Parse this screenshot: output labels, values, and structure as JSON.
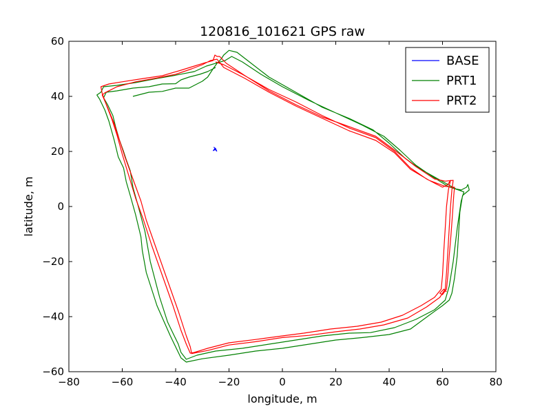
{
  "chart_data": {
    "type": "line",
    "title": "120816_101621 GPS raw",
    "xlabel": "longitude, m",
    "ylabel": "latitude, m",
    "xlim": [
      -80,
      80
    ],
    "ylim": [
      -60,
      60
    ],
    "xticks": [
      -80,
      -60,
      -40,
      -20,
      0,
      20,
      40,
      60,
      80
    ],
    "yticks": [
      -60,
      -40,
      -20,
      0,
      20,
      40,
      60
    ],
    "xtick_labels": [
      "−80",
      "−60",
      "−40",
      "−20",
      "0",
      "20",
      "40",
      "60",
      "80"
    ],
    "ytick_labels": [
      "−60",
      "−40",
      "−20",
      "0",
      "20",
      "40",
      "60"
    ],
    "grid": false,
    "legend_position": "top-right",
    "series": [
      {
        "name": "BASE",
        "color": "#0000ff",
        "paths": [
          [
            [
              -25.7,
              21.6
            ],
            [
              -25.0,
              20.8
            ],
            [
              -25.9,
              20.3
            ],
            [
              -25.1,
              21.2
            ],
            [
              -24.6,
              20.1
            ],
            [
              -25.5,
              21.0
            ]
          ]
        ]
      },
      {
        "name": "PRT1",
        "color": "#008000",
        "paths": [
          [
            [
              -56,
              40
            ],
            [
              -50,
              41.5
            ],
            [
              -45,
              41.8
            ],
            [
              -40,
              43
            ],
            [
              -35,
              43
            ],
            [
              -32,
              44.5
            ],
            [
              -30,
              45.5
            ],
            [
              -28,
              47
            ],
            [
              -26,
              50
            ],
            [
              -24.5,
              52
            ],
            [
              -23,
              53.5
            ],
            [
              -22,
              55
            ],
            [
              -20,
              56.7
            ],
            [
              -17,
              56
            ],
            [
              -13,
              53
            ],
            [
              -5,
              47
            ],
            [
              5,
              41.5
            ],
            [
              15,
              36
            ],
            [
              25,
              32
            ],
            [
              34,
              27.8
            ],
            [
              40,
              23
            ],
            [
              46,
              17.5
            ],
            [
              51,
              14
            ],
            [
              57,
              10.7
            ],
            [
              62,
              8
            ],
            [
              65,
              6.4
            ],
            [
              67,
              6
            ],
            [
              69,
              7
            ],
            [
              69.5,
              8
            ],
            [
              70,
              6
            ],
            [
              67.5,
              4
            ],
            [
              66.5,
              -2
            ],
            [
              66,
              -10
            ],
            [
              65.5,
              -18
            ],
            [
              64.5,
              -26
            ],
            [
              63.5,
              -31.5
            ],
            [
              62.5,
              -34
            ],
            [
              60,
              -36
            ],
            [
              55,
              -39.5
            ],
            [
              48,
              -44.5
            ],
            [
              40,
              -46.5
            ],
            [
              30,
              -47.6
            ],
            [
              20,
              -48.5
            ],
            [
              10,
              -50
            ],
            [
              0,
              -51.5
            ],
            [
              -10,
              -52.5
            ],
            [
              -20,
              -54
            ],
            [
              -30,
              -55.3
            ],
            [
              -36,
              -56.5
            ],
            [
              -38,
              -55
            ],
            [
              -40.5,
              -50
            ],
            [
              -42,
              -47
            ],
            [
              -47,
              -36
            ],
            [
              -51,
              -24
            ],
            [
              -52.5,
              -16
            ],
            [
              -53,
              -11
            ],
            [
              -55,
              -3
            ],
            [
              -57,
              4
            ],
            [
              -58.5,
              9
            ],
            [
              -59.5,
              14
            ],
            [
              -61.5,
              18
            ],
            [
              -63,
              24
            ],
            [
              -65,
              31
            ],
            [
              -66.5,
              35
            ],
            [
              -68.5,
              39
            ],
            [
              -69.5,
              40.5
            ],
            [
              -68,
              41.5
            ],
            [
              -67,
              43.5
            ],
            [
              -62,
              44
            ],
            [
              -55,
              45
            ],
            [
              -47,
              46.5
            ],
            [
              -41,
              47.5
            ],
            [
              -33,
              49
            ],
            [
              -28.5,
              51
            ],
            [
              -24,
              52.3
            ],
            [
              -21.5,
              53
            ],
            [
              -19,
              54.5
            ],
            [
              -15,
              52.5
            ],
            [
              -8,
              48
            ],
            [
              0,
              43.5
            ],
            [
              10,
              38.5
            ],
            [
              20,
              34
            ],
            [
              30,
              29.5
            ],
            [
              38,
              25.5
            ],
            [
              44,
              20.5
            ],
            [
              50,
              15
            ],
            [
              56,
              11
            ],
            [
              62,
              7.3
            ],
            [
              66,
              6
            ],
            [
              68,
              5.3
            ],
            [
              67,
              2
            ],
            [
              65.5,
              -8
            ],
            [
              64,
              -20
            ],
            [
              62.5,
              -29
            ],
            [
              61,
              -34
            ],
            [
              57,
              -37.5
            ],
            [
              50,
              -41
            ],
            [
              42,
              -44
            ],
            [
              33,
              -45.8
            ],
            [
              25,
              -46
            ],
            [
              15,
              -47
            ],
            [
              5,
              -48.5
            ],
            [
              -5,
              -50
            ],
            [
              -15,
              -51.5
            ],
            [
              -25,
              -52.5
            ],
            [
              -32,
              -54
            ],
            [
              -36,
              -55.5
            ],
            [
              -38,
              -53
            ],
            [
              -39,
              -50
            ],
            [
              -43,
              -42
            ],
            [
              -46,
              -33
            ],
            [
              -49.5,
              -20
            ],
            [
              -51.5,
              -9
            ],
            [
              -54,
              0
            ],
            [
              -56,
              7
            ],
            [
              -57,
              13
            ],
            [
              -58.5,
              17
            ],
            [
              -59.5,
              20
            ],
            [
              -61,
              24
            ],
            [
              -62.5,
              29
            ],
            [
              -63.5,
              33
            ],
            [
              -65.5,
              37
            ],
            [
              -67,
              39.5
            ],
            [
              -66,
              41.5
            ],
            [
              -62,
              42
            ],
            [
              -56,
              43
            ],
            [
              -50,
              43.5
            ],
            [
              -45,
              44.5
            ],
            [
              -40,
              44.6
            ],
            [
              -38,
              46
            ],
            [
              -35,
              47
            ],
            [
              -31,
              48
            ],
            [
              -28,
              49
            ],
            [
              -25,
              50.5
            ]
          ]
        ]
      },
      {
        "name": "PRT2",
        "color": "#ff0000",
        "paths": [
          [
            [
              -25,
              52.5
            ],
            [
              -22,
              51.5
            ],
            [
              -15,
              48
            ],
            [
              -5,
              42.5
            ],
            [
              5,
              38
            ],
            [
              15,
              33
            ],
            [
              25,
              28.5
            ],
            [
              35,
              25
            ],
            [
              42,
              20
            ],
            [
              48,
              14
            ],
            [
              54,
              10
            ],
            [
              60,
              7
            ],
            [
              62,
              8
            ],
            [
              63,
              9.5
            ],
            [
              62.2,
              6
            ],
            [
              61.5,
              0
            ],
            [
              61,
              -8
            ],
            [
              60.5,
              -16
            ],
            [
              60,
              -25
            ],
            [
              59.5,
              -30
            ],
            [
              57,
              -33
            ],
            [
              52,
              -36
            ],
            [
              45,
              -39.5
            ],
            [
              37,
              -42
            ],
            [
              28,
              -43.5
            ],
            [
              18,
              -44.5
            ],
            [
              8,
              -46
            ],
            [
              0,
              -47
            ],
            [
              -10,
              -48.3
            ],
            [
              -20,
              -49.5
            ],
            [
              -28,
              -51.5
            ],
            [
              -33,
              -53
            ],
            [
              -34.5,
              -53.3
            ],
            [
              -36,
              -50
            ],
            [
              -38,
              -45
            ],
            [
              -41,
              -36
            ],
            [
              -45,
              -25
            ],
            [
              -49,
              -14
            ],
            [
              -52,
              -5
            ],
            [
              -55,
              3
            ],
            [
              -57.5,
              11
            ],
            [
              -60,
              19
            ],
            [
              -62,
              26
            ],
            [
              -64,
              32
            ],
            [
              -66,
              37
            ],
            [
              -67.5,
              41
            ],
            [
              -68,
              43.5
            ],
            [
              -65,
              44.5
            ],
            [
              -60,
              45.3
            ],
            [
              -52,
              46.5
            ],
            [
              -45,
              47.5
            ],
            [
              -38,
              49.5
            ],
            [
              -33,
              51
            ],
            [
              -29,
              52.2
            ],
            [
              -26,
              53
            ],
            [
              -25.3,
              55
            ],
            [
              -24.5,
              54.5
            ],
            [
              -23.5,
              54.5
            ],
            [
              -21,
              52
            ],
            [
              -14,
              47.5
            ],
            [
              -5,
              42
            ],
            [
              5,
              37
            ],
            [
              15,
              32.5
            ],
            [
              25,
              29
            ],
            [
              35,
              25.5
            ],
            [
              42,
              20.5
            ],
            [
              50,
              14.5
            ],
            [
              57,
              10
            ],
            [
              61,
              9.2
            ],
            [
              64,
              9.5
            ],
            [
              63.5,
              6
            ],
            [
              63,
              0
            ],
            [
              62.5,
              -8
            ],
            [
              62,
              -16
            ],
            [
              61.5,
              -24
            ],
            [
              61,
              -30
            ],
            [
              59,
              -33
            ],
            [
              54,
              -36.5
            ],
            [
              47,
              -40.5
            ],
            [
              38,
              -43
            ],
            [
              29,
              -44.5
            ],
            [
              20,
              -45.5
            ],
            [
              10,
              -46.8
            ],
            [
              0,
              -47.6
            ],
            [
              -10,
              -49.1
            ],
            [
              -20,
              -50.3
            ],
            [
              -28,
              -52.3
            ],
            [
              -34,
              -53.4
            ],
            [
              -34.5,
              -51
            ],
            [
              -36,
              -47
            ],
            [
              -39,
              -38
            ],
            [
              -43,
              -27
            ],
            [
              -47,
              -16
            ],
            [
              -51,
              -5
            ],
            [
              -53,
              2
            ],
            [
              -56,
              10
            ],
            [
              -59,
              18
            ],
            [
              -61,
              24
            ],
            [
              -63,
              30
            ],
            [
              -65.5,
              36
            ],
            [
              -67.5,
              40.5
            ],
            [
              -66.5,
              41.3
            ],
            [
              -62,
              43.5
            ],
            [
              -55,
              45.3
            ],
            [
              -48,
              46.5
            ],
            [
              -40,
              48
            ],
            [
              -34,
              50
            ],
            [
              -30,
              51.5
            ],
            [
              -27,
              53
            ],
            [
              -24.5,
              53.5
            ],
            [
              -22,
              50.5
            ],
            [
              -14,
              46.5
            ],
            [
              -5,
              41.5
            ],
            [
              5,
              36.5
            ],
            [
              15,
              32
            ],
            [
              25,
              27.5
            ],
            [
              35,
              24
            ],
            [
              42,
              19.5
            ],
            [
              48,
              13.5
            ],
            [
              55,
              9.5
            ],
            [
              61,
              7.3
            ],
            [
              64.5,
              7
            ],
            [
              64.2,
              4
            ],
            [
              63.8,
              -2
            ],
            [
              63.2,
              -10
            ],
            [
              62.5,
              -18
            ],
            [
              62,
              -25
            ],
            [
              61.5,
              -30
            ],
            [
              60,
              -32
            ],
            [
              59,
              -31.5
            ],
            [
              60.5,
              -30
            ],
            [
              61.5,
              -31
            ]
          ]
        ]
      }
    ]
  }
}
